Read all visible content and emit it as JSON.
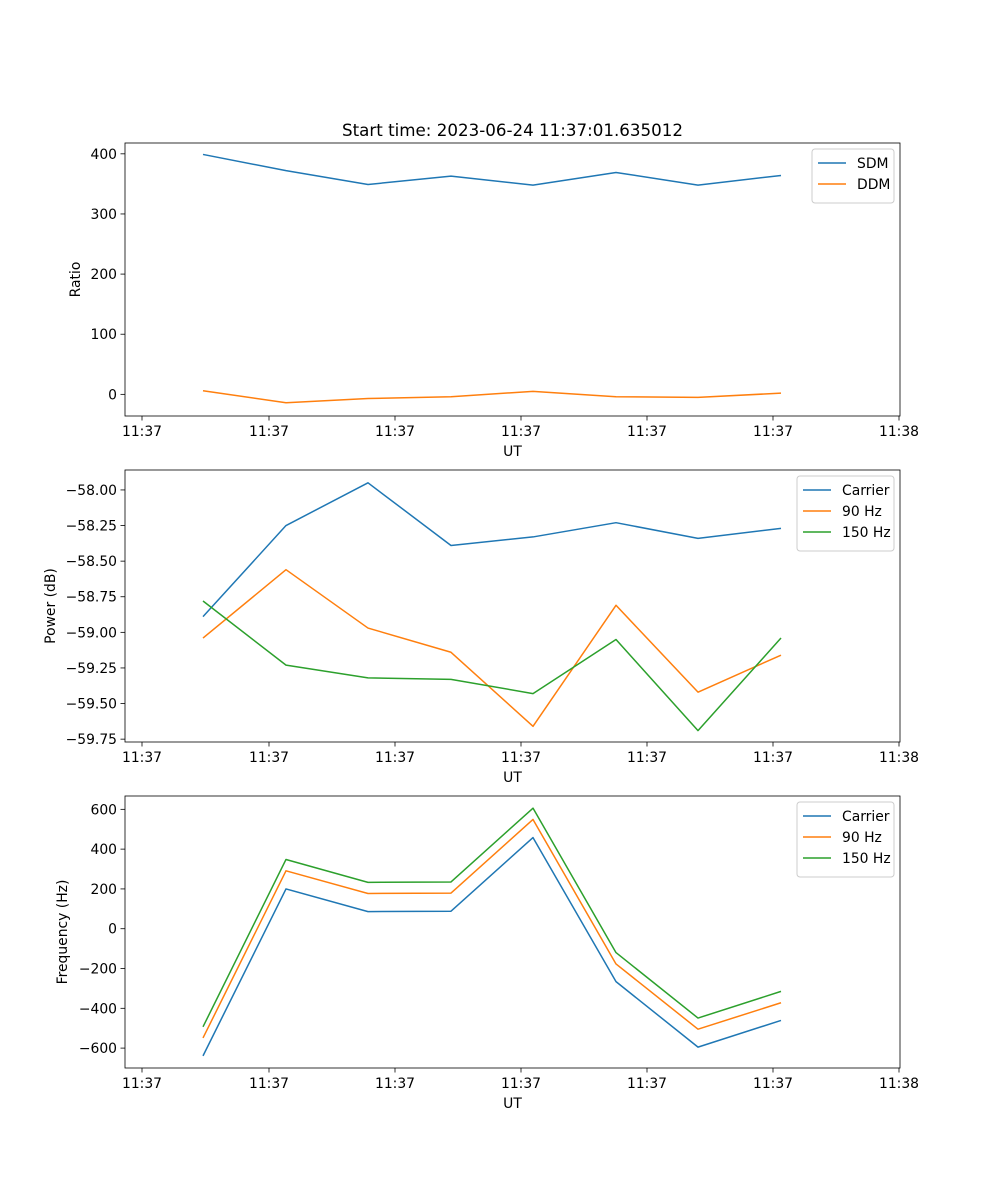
{
  "chart_data": [
    {
      "type": "line",
      "title": "Start time: 2023-06-24 11:37:01.635012",
      "xlabel": "UT",
      "ylabel": "Ratio",
      "xticklabels": [
        "11:37",
        "11:37",
        "11:37",
        "11:37",
        "11:37",
        "11:37",
        "11:38"
      ],
      "yticks": [
        0,
        100,
        200,
        300,
        400
      ],
      "yticklabels": [
        "0",
        "100",
        "200",
        "300",
        "400"
      ],
      "ylim": [
        -36,
        418
      ],
      "grid": false,
      "legend_position": "top-right",
      "series": [
        {
          "name": "SDM",
          "color": "#1f77b4",
          "values": [
            399,
            372,
            349,
            363,
            348,
            369,
            348,
            364
          ]
        },
        {
          "name": "DDM",
          "color": "#ff7f0e",
          "values": [
            6,
            -14,
            -7,
            -4,
            5,
            -4,
            -5,
            2
          ]
        }
      ]
    },
    {
      "type": "line",
      "title": "",
      "xlabel": "UT",
      "ylabel": "Power (dB)",
      "xticklabels": [
        "11:37",
        "11:37",
        "11:37",
        "11:37",
        "11:37",
        "11:37",
        "11:38"
      ],
      "yticks": [
        -59.75,
        -59.5,
        -59.25,
        -59.0,
        -58.75,
        -58.5,
        -58.25,
        -58.0
      ],
      "yticklabels": [
        "−59.75",
        "−59.50",
        "−59.25",
        "−59.00",
        "−58.75",
        "−58.50",
        "−58.25",
        "−58.00"
      ],
      "ylim": [
        -59.77,
        -57.86
      ],
      "grid": false,
      "legend_position": "top-right",
      "series": [
        {
          "name": "Carrier",
          "color": "#1f77b4",
          "values": [
            -58.89,
            -58.25,
            -57.95,
            -58.39,
            -58.33,
            -58.23,
            -58.34,
            -58.27
          ]
        },
        {
          "name": "90 Hz",
          "color": "#ff7f0e",
          "values": [
            -59.04,
            -58.56,
            -58.97,
            -59.14,
            -59.66,
            -58.81,
            -59.42,
            -59.16
          ]
        },
        {
          "name": "150 Hz",
          "color": "#2ca02c",
          "values": [
            -58.78,
            -59.23,
            -59.32,
            -59.33,
            -59.43,
            -59.05,
            -59.69,
            -59.04
          ]
        }
      ]
    },
    {
      "type": "line",
      "title": "",
      "xlabel": "UT",
      "ylabel": "Frequency (Hz)",
      "xticklabels": [
        "11:37",
        "11:37",
        "11:37",
        "11:37",
        "11:37",
        "11:37",
        "11:38"
      ],
      "yticks": [
        -600,
        -400,
        -200,
        0,
        200,
        400,
        600
      ],
      "yticklabels": [
        "−600",
        "−400",
        "−200",
        "0",
        "200",
        "400",
        "600"
      ],
      "ylim": [
        -700,
        667
      ],
      "grid": false,
      "legend_position": "top-right",
      "series": [
        {
          "name": "Carrier",
          "color": "#1f77b4",
          "values": [
            -639,
            200,
            86,
            88,
            458,
            -266,
            -595,
            -461
          ]
        },
        {
          "name": "90 Hz",
          "color": "#ff7f0e",
          "values": [
            -549,
            291,
            177,
            179,
            549,
            -177,
            -505,
            -372
          ]
        },
        {
          "name": "150 Hz",
          "color": "#2ca02c",
          "values": [
            -493,
            348,
            233,
            235,
            606,
            -120,
            -449,
            -315
          ]
        }
      ]
    }
  ]
}
